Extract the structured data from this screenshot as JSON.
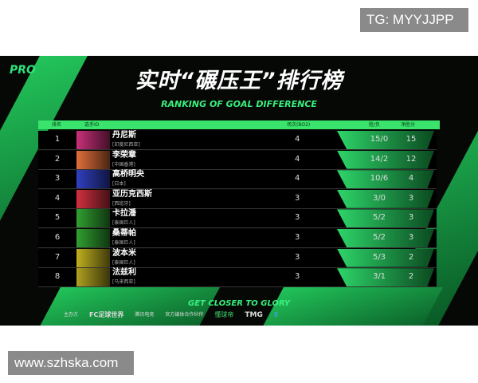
{
  "watermarks": {
    "top": "TG: MYYJJPP",
    "bottom": "www.szhska.com"
  },
  "logo": "PRO",
  "title": "实时“碾压王”排行榜",
  "subtitle": "RANKING OF GOAL DIFFERENCE",
  "headers": {
    "rank": "排名",
    "player": "选手ID",
    "games": "场次(BO2)",
    "wl": "胜/负",
    "net": "净胜分"
  },
  "rows": [
    {
      "rank": "1",
      "name": "丹尼斯",
      "country": "[印度尼西亚]",
      "games": "4",
      "wl": "15/0",
      "net": "15",
      "color": "#c8307a"
    },
    {
      "rank": "2",
      "name": "李荣章",
      "country": "[中国香港]",
      "games": "4",
      "wl": "14/2",
      "net": "12",
      "color": "#e0703a"
    },
    {
      "rank": "3",
      "name": "高桥明央",
      "country": "[日本]",
      "games": "4",
      "wl": "10/6",
      "net": "4",
      "color": "#3040c0"
    },
    {
      "rank": "4",
      "name": "亚历克西斯",
      "country": "[西班牙]",
      "games": "3",
      "wl": "3/0",
      "net": "3",
      "color": "#d03040"
    },
    {
      "rank": "5",
      "name": "卡拉潘",
      "country": "[泰国巨人]",
      "games": "3",
      "wl": "5/2",
      "net": "3",
      "color": "#30a030"
    },
    {
      "rank": "6",
      "name": "桑蒂帕",
      "country": "[泰国巨人]",
      "games": "3",
      "wl": "5/2",
      "net": "3",
      "color": "#30a030"
    },
    {
      "rank": "7",
      "name": "波本米",
      "country": "[泰国巨人]",
      "games": "3",
      "wl": "5/3",
      "net": "2",
      "color": "#c0b020"
    },
    {
      "rank": "8",
      "name": "法兹利",
      "country": "[马来西亚]",
      "games": "3",
      "wl": "3/1",
      "net": "2",
      "color": "#b0a020"
    }
  ],
  "tagline": "GET CLOSER TO GLORY",
  "sponsors": [
    "主办方",
    "FC足球世界",
    "腾讯电竞",
    "官方媒体合作伙伴",
    "懂球帝",
    "TMG",
    "8"
  ]
}
